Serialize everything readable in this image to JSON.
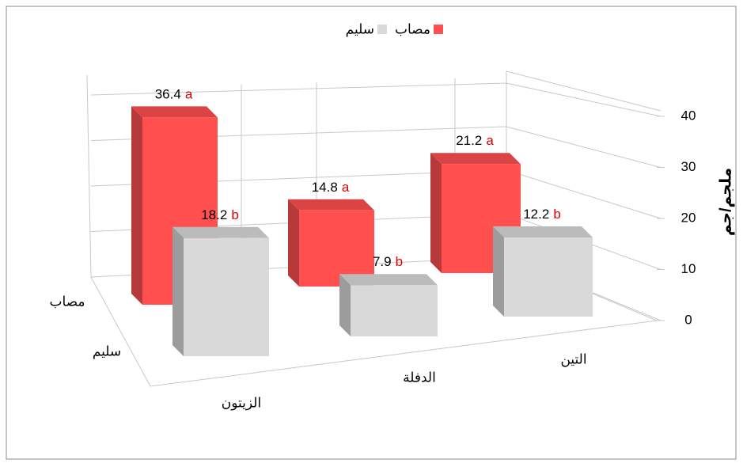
{
  "chart_data": {
    "type": "bar3d",
    "categories": [
      "الزيتون",
      "الدفلة",
      "التين"
    ],
    "series": [
      {
        "name": "مصاب",
        "color": "#ff4f4f",
        "values": [
          36.4,
          14.8,
          21.2
        ],
        "letters": [
          "a",
          "a",
          "a"
        ]
      },
      {
        "name": "سليم",
        "color": "#d9d9d9",
        "values": [
          18.2,
          7.9,
          12.2
        ],
        "letters": [
          "b",
          "b",
          "b"
        ]
      }
    ],
    "ylabel": "ملجم/جم",
    "ylim": [
      0,
      40
    ],
    "yticks": [
      0,
      10,
      20,
      30,
      40
    ],
    "grid": true,
    "legend": "top"
  }
}
